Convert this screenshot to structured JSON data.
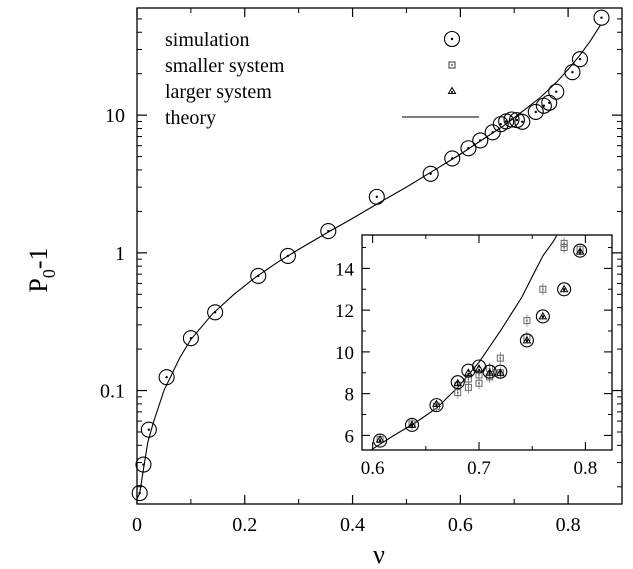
{
  "chart_data": [
    {
      "type": "scatter",
      "xlabel": "ν",
      "ylabel_main": "P",
      "ylabel_sub": "0",
      "ylabel_tail": "-1",
      "xscale": "linear",
      "yscale": "log",
      "xlim": [
        0,
        0.9
      ],
      "ylim": [
        0.015,
        60
      ],
      "x_ticks": [
        "0",
        "0.2",
        "0.4",
        "0.6",
        "0.8"
      ],
      "x_tick_values": [
        0,
        0.2,
        0.4,
        0.6,
        0.8
      ],
      "y_ticks": [
        "0.1",
        "1",
        "10"
      ],
      "y_tick_values": [
        0.1,
        1,
        10
      ],
      "legend": {
        "placement": "top-left",
        "entries": [
          {
            "label": "simulation",
            "marker": "circle-dot"
          },
          {
            "label": "smaller system",
            "marker": "square-dot"
          },
          {
            "label": "larger system",
            "marker": "triangle-dot"
          },
          {
            "label": "theory",
            "marker": "line"
          }
        ]
      },
      "series": [
        {
          "name": "simulation",
          "marker": "circle-dot",
          "x": [
            0.005,
            0.012,
            0.022,
            0.055,
            0.1,
            0.145,
            0.225,
            0.28,
            0.355,
            0.445,
            0.545,
            0.585,
            0.615,
            0.637,
            0.66,
            0.675,
            0.685,
            0.695,
            0.705,
            0.715,
            0.74,
            0.755,
            0.765,
            0.778,
            0.808,
            0.822,
            0.862
          ],
          "y": [
            0.018,
            0.029,
            0.052,
            0.125,
            0.24,
            0.37,
            0.68,
            0.95,
            1.44,
            2.55,
            3.75,
            4.85,
            5.75,
            6.55,
            7.5,
            8.6,
            9.0,
            9.3,
            9.2,
            8.95,
            10.55,
            11.7,
            12.3,
            14.8,
            20.5,
            25.5,
            51
          ]
        },
        {
          "name": "theory",
          "marker": "line",
          "x": [
            0.001,
            0.005,
            0.01,
            0.02,
            0.03,
            0.05,
            0.08,
            0.1,
            0.14,
            0.18,
            0.22,
            0.26,
            0.3,
            0.35,
            0.4,
            0.45,
            0.5,
            0.55,
            0.6,
            0.64,
            0.68,
            0.72,
            0.75,
            0.78,
            0.8,
            0.82,
            0.84,
            0.86
          ],
          "y": [
            0.0167,
            0.0179,
            0.024,
            0.042,
            0.058,
            0.1,
            0.175,
            0.235,
            0.36,
            0.5,
            0.665,
            0.85,
            1.06,
            1.38,
            1.78,
            2.32,
            3.0,
            3.95,
            5.2,
            6.6,
            8.35,
            11.0,
            13.6,
            17.6,
            21.5,
            26.7,
            34.0,
            45
          ]
        }
      ]
    },
    {
      "type": "scatter",
      "placement": "inset-bottom-right",
      "xscale": "linear",
      "yscale": "linear",
      "xlim": [
        0.59,
        0.825
      ],
      "ylim": [
        5.3,
        15.6
      ],
      "x_ticks": [
        "0.6",
        "0.7",
        "0.8"
      ],
      "x_tick_values": [
        0.6,
        0.7,
        0.8
      ],
      "y_ticks": [
        "6",
        "8",
        "10",
        "12",
        "14"
      ],
      "y_tick_values": [
        6,
        8,
        10,
        12,
        14
      ],
      "series": [
        {
          "name": "simulation",
          "marker": "circle-dot",
          "x": [
            0.607,
            0.637,
            0.66,
            0.68,
            0.69,
            0.7,
            0.71,
            0.72,
            0.745,
            0.76,
            0.78,
            0.795
          ],
          "y": [
            5.75,
            6.5,
            7.45,
            8.55,
            9.1,
            9.3,
            9.05,
            9.05,
            10.55,
            11.7,
            13.0,
            14.85
          ]
        },
        {
          "name": "smaller system",
          "marker": "square-dot",
          "x": [
            0.607,
            0.637,
            0.66,
            0.68,
            0.68,
            0.69,
            0.69,
            0.7,
            0.7,
            0.71,
            0.71,
            0.72,
            0.72,
            0.745,
            0.745,
            0.76,
            0.78,
            0.78,
            0.795
          ],
          "y": [
            5.8,
            6.55,
            7.4,
            8.05,
            8.4,
            8.3,
            8.7,
            8.5,
            8.9,
            8.8,
            9.2,
            9.0,
            9.7,
            10.7,
            11.5,
            13.0,
            15.0,
            15.2,
            14.9
          ],
          "note": "error bars shown on several points"
        },
        {
          "name": "larger system",
          "marker": "triangle-dot",
          "x": [
            0.607,
            0.637,
            0.66,
            0.68,
            0.69,
            0.7,
            0.71,
            0.72,
            0.745,
            0.76,
            0.78,
            0.795
          ],
          "y": [
            5.8,
            6.5,
            7.5,
            8.5,
            9.0,
            9.2,
            9.0,
            9.0,
            10.55,
            11.7,
            13.0,
            14.8
          ]
        },
        {
          "name": "theory",
          "marker": "line",
          "x": [
            0.59,
            0.6,
            0.62,
            0.64,
            0.66,
            0.68,
            0.7,
            0.72,
            0.74,
            0.75,
            0.76,
            0.77,
            0.78
          ],
          "y": [
            5.0,
            5.35,
            6.0,
            6.6,
            7.3,
            8.3,
            9.5,
            11.0,
            12.6,
            13.6,
            14.6,
            15.3,
            16.2
          ]
        }
      ]
    }
  ]
}
